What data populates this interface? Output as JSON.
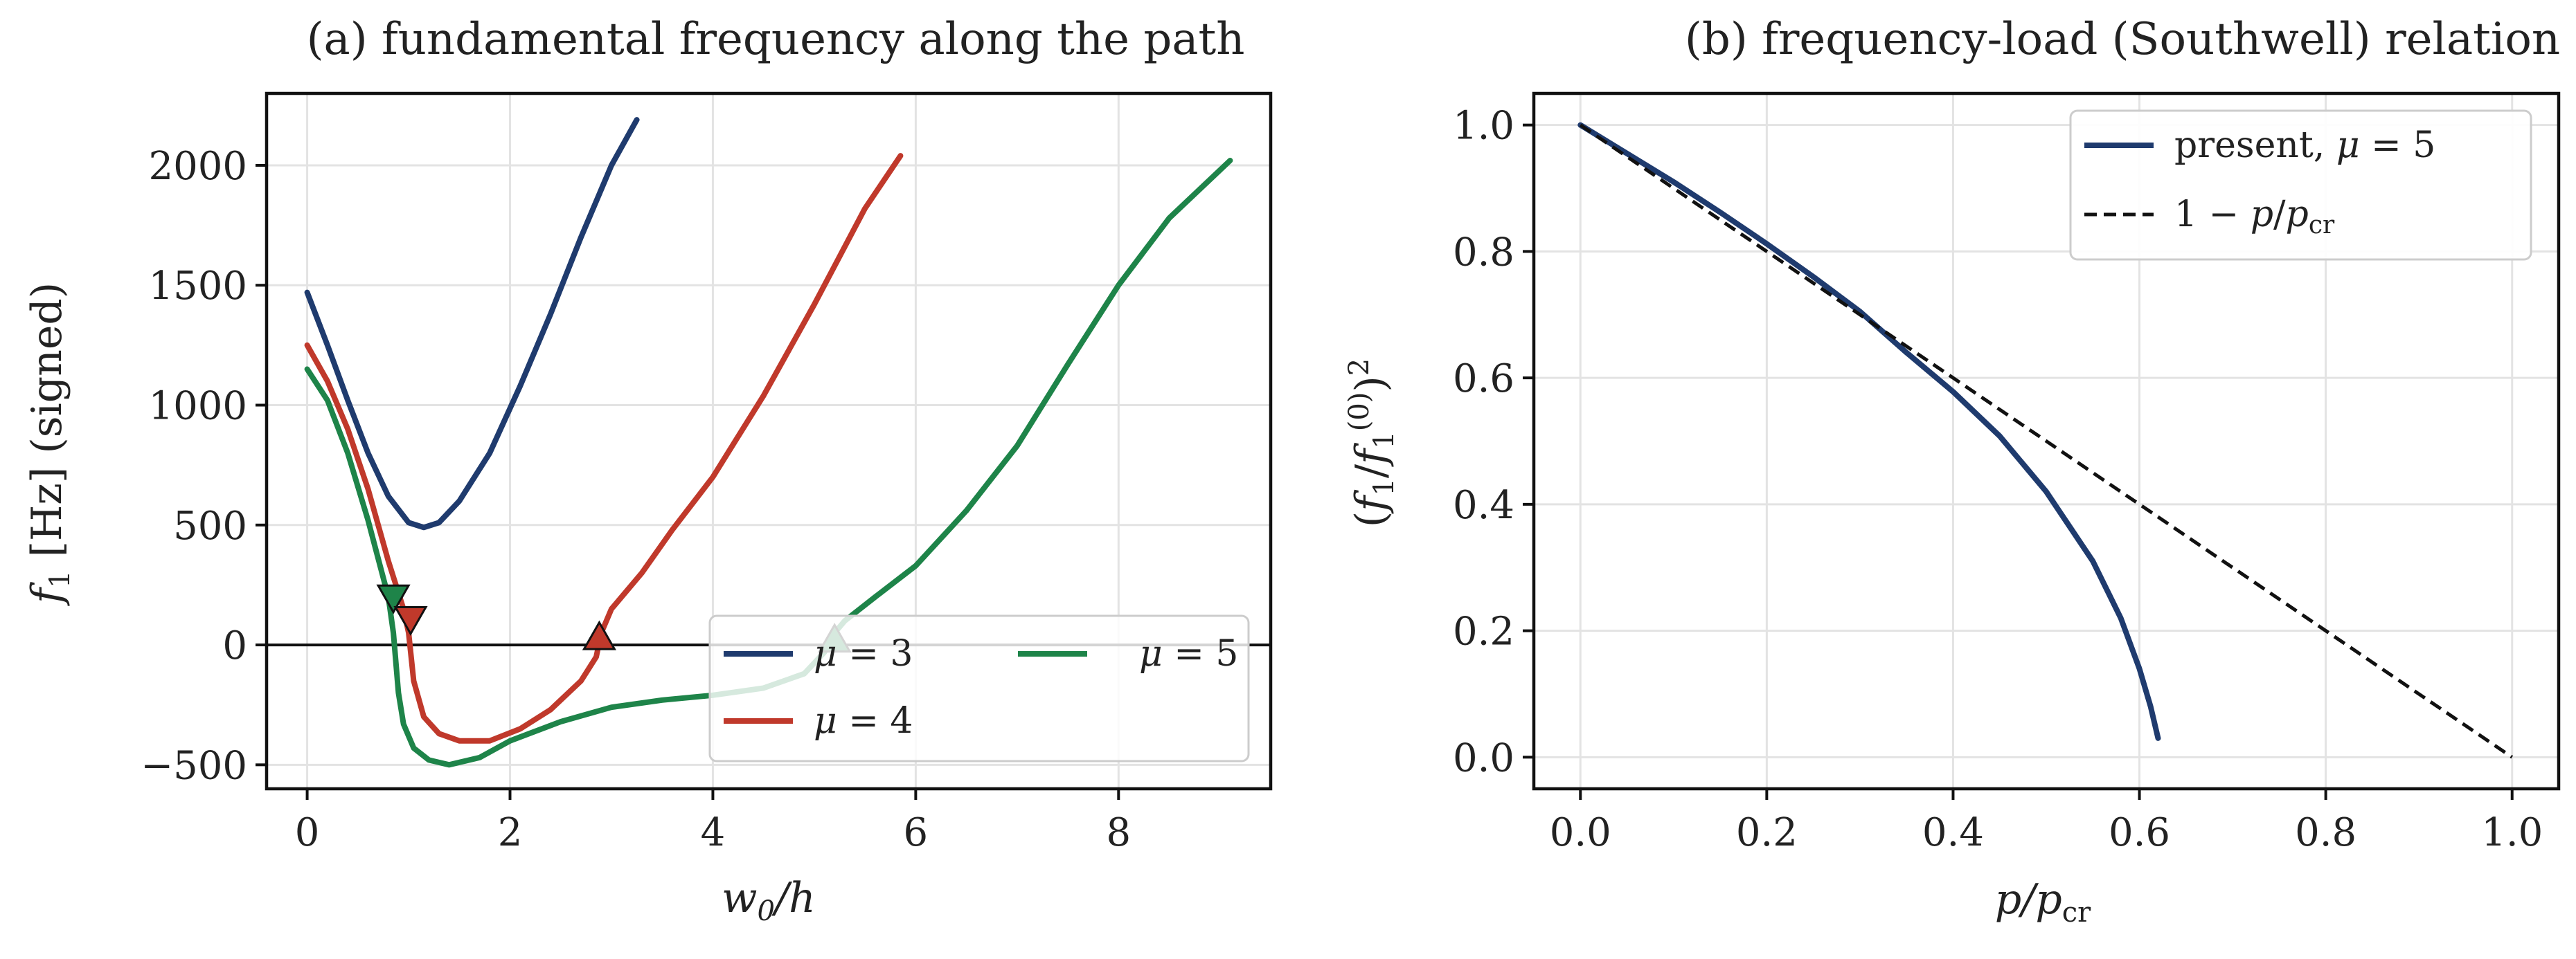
{
  "chart_data": [
    {
      "type": "line",
      "title": "(a) fundamental frequency along the path",
      "xlabel": "w₀/h",
      "ylabel": "f₁  [Hz]  (signed)",
      "xlim": [
        -0.4,
        9.5
      ],
      "ylim": [
        -600,
        2300
      ],
      "xticks": [
        0,
        2,
        4,
        6,
        8
      ],
      "yticks": [
        -500,
        0,
        500,
        1000,
        1500,
        2000
      ],
      "xtick_labels": [
        "0",
        "2",
        "4",
        "6",
        "8"
      ],
      "ytick_labels": [
        "−500",
        "0",
        "500",
        "1000",
        "1500",
        "2000"
      ],
      "grid": true,
      "legend": "lower-right",
      "series": [
        {
          "name": "μ = 3",
          "color": "#1f3b6e",
          "x": [
            0,
            0.2,
            0.4,
            0.6,
            0.8,
            1.0,
            1.15,
            1.3,
            1.5,
            1.8,
            2.1,
            2.4,
            2.7,
            3.0,
            3.25
          ],
          "y": [
            1470,
            1250,
            1020,
            800,
            620,
            510,
            490,
            510,
            600,
            800,
            1080,
            1380,
            1700,
            2000,
            2190
          ]
        },
        {
          "name": "μ = 4",
          "color": "#c0392b",
          "x": [
            0,
            0.2,
            0.4,
            0.6,
            0.8,
            0.95,
            1.0,
            1.05,
            1.15,
            1.3,
            1.5,
            1.8,
            2.1,
            2.4,
            2.7,
            2.85,
            2.9,
            3.0,
            3.3,
            3.6,
            4.0,
            4.5,
            5.0,
            5.5,
            5.85
          ],
          "y": [
            1250,
            1100,
            900,
            650,
            350,
            150,
            50,
            -150,
            -300,
            -370,
            -400,
            -400,
            -350,
            -270,
            -150,
            -50,
            50,
            150,
            300,
            480,
            700,
            1040,
            1420,
            1820,
            2040
          ]
        },
        {
          "name": "μ = 5",
          "color": "#1e8449",
          "x": [
            0,
            0.2,
            0.4,
            0.6,
            0.8,
            0.85,
            0.9,
            0.95,
            1.05,
            1.2,
            1.4,
            1.7,
            2.0,
            2.5,
            3.0,
            3.5,
            4.0,
            4.5,
            4.9,
            5.1,
            5.2,
            5.3,
            5.6,
            6.0,
            6.5,
            7.0,
            7.5,
            8.0,
            8.5,
            9.1
          ],
          "y": [
            1150,
            1020,
            800,
            520,
            200,
            50,
            -200,
            -330,
            -430,
            -480,
            -500,
            -470,
            -400,
            -320,
            -260,
            -230,
            -210,
            -180,
            -120,
            -30,
            50,
            100,
            200,
            330,
            560,
            830,
            1170,
            1500,
            1780,
            2020
          ]
        }
      ],
      "markers": [
        {
          "series": "μ = 5",
          "x": 0.85,
          "y": 200,
          "shape": "triangle-down"
        },
        {
          "series": "μ = 4",
          "x": 1.02,
          "y": 110,
          "shape": "triangle-down"
        },
        {
          "series": "μ = 4",
          "x": 2.88,
          "y": 30,
          "shape": "triangle-up"
        },
        {
          "series": "μ = 5",
          "x": 5.2,
          "y": 20,
          "shape": "triangle-up"
        }
      ],
      "hline": 0
    },
    {
      "type": "line",
      "title": "(b) frequency-load (Southwell) relation",
      "xlabel": "p/p_cr",
      "ylabel": "(f₁/f₁⁽⁰⁾)²",
      "xlim": [
        -0.05,
        1.05
      ],
      "ylim": [
        -0.05,
        1.05
      ],
      "xticks": [
        0,
        0.2,
        0.4,
        0.6,
        0.8,
        1.0
      ],
      "yticks": [
        0,
        0.2,
        0.4,
        0.6,
        0.8,
        1.0
      ],
      "xtick_labels": [
        "0.0",
        "0.2",
        "0.4",
        "0.6",
        "0.8",
        "1.0"
      ],
      "ytick_labels": [
        "0.0",
        "0.2",
        "0.4",
        "0.6",
        "0.8",
        "1.0"
      ],
      "grid": true,
      "legend": "top-right",
      "series": [
        {
          "name": "present, μ = 5",
          "color": "#1f3b6e",
          "style": "solid",
          "x": [
            0,
            0.05,
            0.1,
            0.15,
            0.2,
            0.25,
            0.3,
            0.35,
            0.4,
            0.45,
            0.5,
            0.55,
            0.58,
            0.6,
            0.612,
            0.62
          ],
          "y": [
            1.0,
            0.955,
            0.91,
            0.862,
            0.812,
            0.76,
            0.705,
            0.64,
            0.578,
            0.508,
            0.42,
            0.31,
            0.22,
            0.14,
            0.08,
            0.03
          ]
        },
        {
          "name": "1 − p/p_cr",
          "color": "#111111",
          "style": "dashed",
          "x": [
            0,
            1.0
          ],
          "y": [
            1.0,
            0.0
          ]
        }
      ]
    }
  ]
}
